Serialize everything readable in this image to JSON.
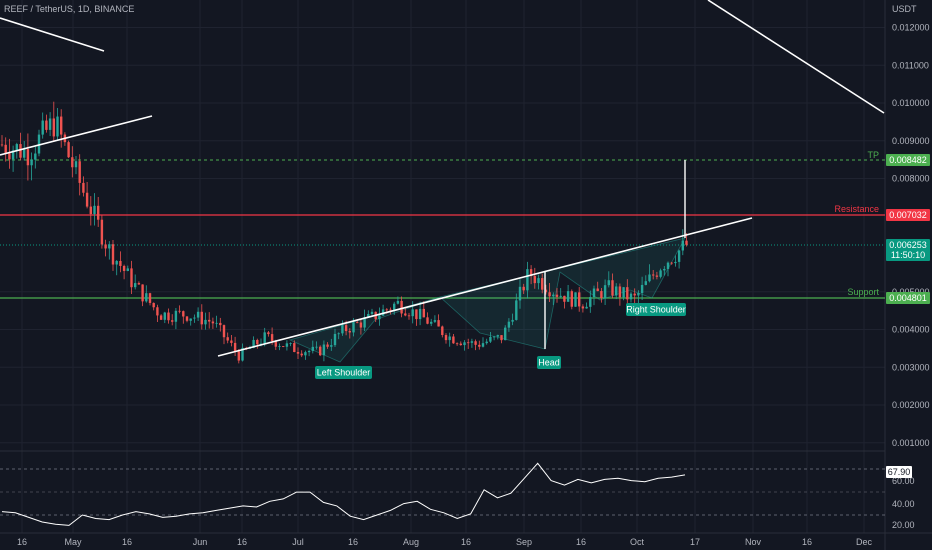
{
  "header": {
    "symbol_title": "REEF / TetherUS, 1D, BINANCE"
  },
  "axis": {
    "currency": "USDT",
    "price_ticks": [
      "0.012000",
      "0.011000",
      "0.010000",
      "0.009000",
      "0.008000",
      "0.005000",
      "0.004000",
      "0.003000",
      "0.002000",
      "0.001000"
    ],
    "date_ticks": [
      "16",
      "May",
      "16",
      "Jun",
      "16",
      "Jul",
      "16",
      "Aug",
      "16",
      "Sep",
      "16",
      "Oct",
      "17",
      "Nov",
      "16",
      "Dec"
    ]
  },
  "levels": {
    "tp": {
      "label": "TP",
      "value": "0.008482",
      "color": "#4caf50"
    },
    "resistance": {
      "label": "Resistance",
      "value": "0.007032",
      "color": "#f23645"
    },
    "support": {
      "label": "Support",
      "value": "0.004801",
      "color": "#4caf50"
    },
    "current": {
      "value": "0.006253",
      "countdown": "11:50:10",
      "color": "#089981"
    }
  },
  "annotations": {
    "left_shoulder": "Left Shoulder",
    "head": "Head",
    "right_shoulder": "Right Shoulder"
  },
  "rsi": {
    "value_tag": "67.90",
    "ticks": [
      "60.00",
      "40.00",
      "20.00"
    ]
  },
  "chart_data": {
    "type": "candlestick",
    "title": "REEF / TetherUS, 1D, BINANCE",
    "y_unit": "USDT",
    "ylim": [
      0.0008,
      0.0131
    ],
    "x_ticks": [
      "16",
      "May",
      "16",
      "Jun",
      "16",
      "Jul",
      "16",
      "Aug",
      "16",
      "Sep",
      "16",
      "Oct",
      "17",
      "Nov",
      "16",
      "Dec"
    ],
    "price_path": [
      {
        "date": "Apr 16",
        "close": 0.0089
      },
      {
        "date": "Apr 24",
        "close": 0.0087
      },
      {
        "date": "May 1",
        "close": 0.0095
      },
      {
        "date": "May 7",
        "close": 0.0078
      },
      {
        "date": "May 12",
        "close": 0.0062
      },
      {
        "date": "May 16",
        "close": 0.0052
      },
      {
        "date": "May 20",
        "close": 0.0044
      },
      {
        "date": "May 28",
        "close": 0.0044
      },
      {
        "date": "Jun 5",
        "close": 0.0042
      },
      {
        "date": "Jun 16",
        "close": 0.0033
      },
      {
        "date": "Jun 25",
        "close": 0.0038
      },
      {
        "date": "Jul 5",
        "close": 0.0035
      },
      {
        "date": "Jul 16",
        "close": 0.0034
      },
      {
        "date": "Jul 22",
        "close": 0.004
      },
      {
        "date": "Aug 1",
        "close": 0.0043
      },
      {
        "date": "Aug 7",
        "close": 0.0047
      },
      {
        "date": "Aug 16",
        "close": 0.0043
      },
      {
        "date": "Aug 23",
        "close": 0.0038
      },
      {
        "date": "Sep 1",
        "close": 0.0036
      },
      {
        "date": "Sep 7",
        "close": 0.0038
      },
      {
        "date": "Sep 13",
        "close": 0.0055
      },
      {
        "date": "Sep 20",
        "close": 0.005
      },
      {
        "date": "Sep 27",
        "close": 0.0047
      },
      {
        "date": "Oct 2",
        "close": 0.0051
      },
      {
        "date": "Oct 7",
        "close": 0.0048
      },
      {
        "date": "Oct 12",
        "close": 0.0057
      },
      {
        "date": "Oct 14",
        "close": 0.006253
      }
    ],
    "lines": [
      {
        "name": "TP",
        "value": 0.008482
      },
      {
        "name": "Resistance",
        "value": 0.007032
      },
      {
        "name": "Support",
        "value": 0.004801
      }
    ],
    "rsi_last": 67.9,
    "rsi_path": [
      36,
      35,
      31,
      27,
      25,
      24,
      33,
      30,
      29,
      33,
      36,
      34,
      31,
      32,
      34,
      35,
      37,
      39,
      41,
      40,
      45,
      47,
      53,
      53,
      44,
      41,
      32,
      29,
      33,
      37,
      43,
      45,
      38,
      35,
      30,
      34,
      55,
      48,
      52,
      65,
      78,
      63,
      59,
      64,
      61,
      64,
      65,
      63,
      62,
      65,
      66,
      67.9
    ],
    "rsi_levels": [
      70,
      50,
      30
    ]
  }
}
